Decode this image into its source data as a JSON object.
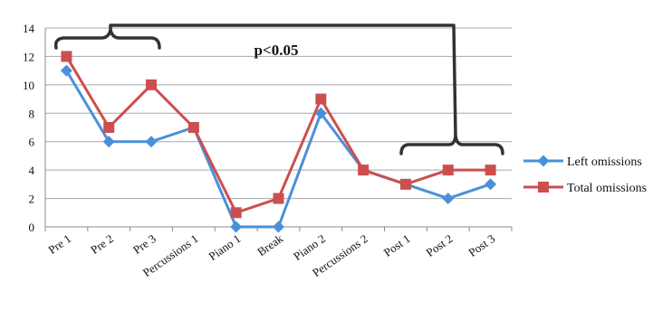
{
  "chart_data": {
    "type": "line",
    "categories": [
      "Pre 1",
      "Pre 2",
      "Pre 3",
      "Percussions 1",
      "Piano 1",
      "Break",
      "Piano 2",
      "Percussions 2",
      "Post 1",
      "Post 2",
      "Post 3"
    ],
    "series": [
      {
        "name": "Left omissions",
        "values": [
          11,
          6,
          6,
          7,
          0,
          0,
          8,
          4,
          3,
          2,
          3
        ],
        "color": "#4a90d9",
        "marker": "diamond"
      },
      {
        "name": "Total omissions",
        "values": [
          12,
          7,
          10,
          7,
          1,
          2,
          9,
          4,
          3,
          4,
          4
        ],
        "color": "#cc4f4f",
        "marker": "square"
      }
    ],
    "ylim": [
      0,
      14
    ],
    "yticks": [
      0,
      2,
      4,
      6,
      8,
      10,
      12,
      14
    ],
    "grid": true,
    "legend": "right",
    "annotation": {
      "text": "p<0.05",
      "bracket_groups": [
        [
          "Pre 1",
          "Pre 3"
        ],
        [
          "Post 1",
          "Post 3"
        ]
      ]
    }
  }
}
